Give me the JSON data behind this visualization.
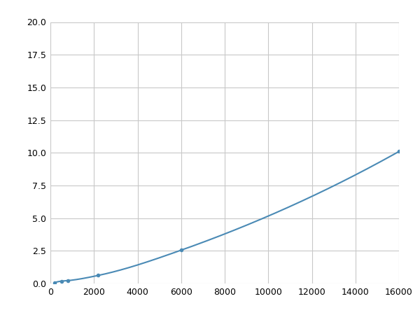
{
  "x": [
    200,
    500,
    800,
    2200,
    6000,
    16000
  ],
  "y": [
    0.08,
    0.18,
    0.22,
    0.62,
    2.55,
    10.1
  ],
  "xlim": [
    0,
    16000
  ],
  "ylim": [
    0,
    20.0
  ],
  "xticks": [
    0,
    2000,
    4000,
    6000,
    8000,
    10000,
    12000,
    14000,
    16000
  ],
  "yticks": [
    0.0,
    2.5,
    5.0,
    7.5,
    10.0,
    12.5,
    15.0,
    17.5,
    20.0
  ],
  "line_color": "#4a8ab5",
  "marker_color": "#4a8ab5",
  "marker_size": 4,
  "line_width": 1.5,
  "background_color": "#ffffff",
  "grid_color": "#c8c8c8"
}
